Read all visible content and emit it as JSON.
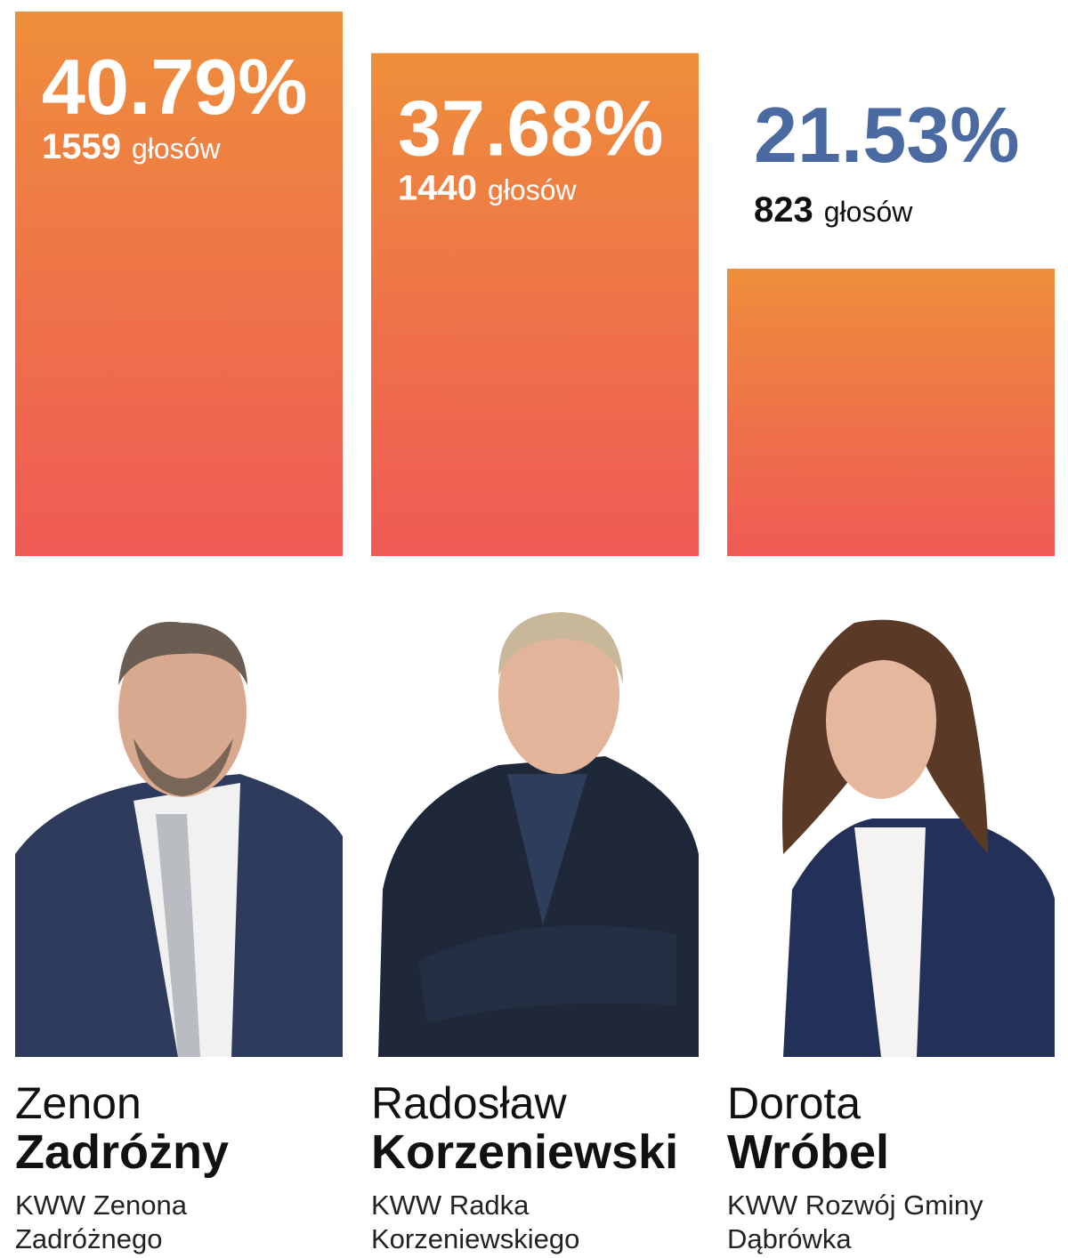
{
  "chart_data": {
    "type": "bar",
    "values": [
      40.79,
      37.68,
      21.53
    ],
    "value_labels": [
      "40.79%",
      "37.68%",
      "21.53%"
    ],
    "votes": [
      1559,
      1440,
      823
    ],
    "votes_unit": "głosów",
    "color_top": "#ee8e3b",
    "color_bottom": "#ef5a55",
    "outside_label_color": "#4a6aa1",
    "candidates": [
      {
        "first_name": "Zenon",
        "last_name": "Zadróżny",
        "committee": "KWW Zenona Zadróżnego"
      },
      {
        "first_name": "Radosław",
        "last_name": "Korzeniewski",
        "committee": "KWW Radka Korzeniewskiego"
      },
      {
        "first_name": "Dorota",
        "last_name": "Wróbel",
        "committee": "KWW Rozwój Gminy Dąbrówka"
      }
    ]
  }
}
